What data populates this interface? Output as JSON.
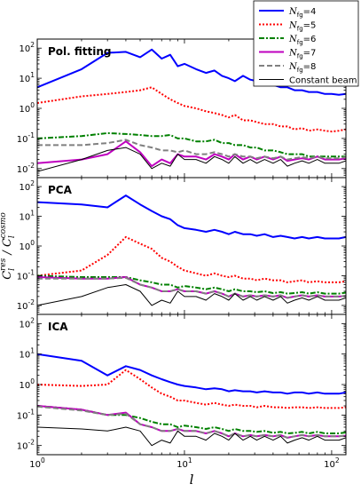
{
  "chart_data": {
    "type": "line",
    "xlabel": "l",
    "ylabel": "C_l^res / C_l^cosmo",
    "x_scale": "log",
    "y_scale": "log",
    "xlim": [
      1,
      125
    ],
    "ylim": [
      0.005,
      200
    ],
    "x_ticks": [
      "10^0",
      "10^1",
      "10^2"
    ],
    "y_ticks": [
      "10^-2",
      "10^-1",
      "10^0",
      "10^1",
      "10^2"
    ],
    "x": [
      1,
      2,
      3,
      4,
      5,
      6,
      7,
      8,
      9,
      10,
      12,
      14,
      16,
      18,
      20,
      22,
      25,
      28,
      31,
      35,
      40,
      45,
      50,
      56,
      63,
      70,
      80,
      90,
      100,
      112,
      125
    ],
    "legend": {
      "position": "top-right",
      "entries": [
        {
          "label": "N_fg=4",
          "base": "N",
          "sub": "fg",
          "suffix": "=4",
          "color": "#0000ff",
          "dash": "solid",
          "width": 2
        },
        {
          "label": "N_fg=5",
          "base": "N",
          "sub": "fg",
          "suffix": "=5",
          "color": "#ff0000",
          "dash": "dotted",
          "width": 2
        },
        {
          "label": "N_fg=6",
          "base": "N",
          "sub": "fg",
          "suffix": "=6",
          "color": "#008000",
          "dash": "dashdot",
          "width": 2
        },
        {
          "label": "N_fg=7",
          "base": "N",
          "sub": "fg",
          "suffix": "=7",
          "color": "#bf00bf",
          "dash": "solid",
          "width": 2
        },
        {
          "label": "N_fg=8",
          "base": "N",
          "sub": "fg",
          "suffix": "=8",
          "color": "#808080",
          "dash": "dashed",
          "width": 2
        },
        {
          "label": "Constant beam",
          "base": "Constant beam",
          "sub": "",
          "suffix": "",
          "color": "#000000",
          "dash": "solid",
          "width": 1
        }
      ]
    },
    "panels": [
      {
        "label": "Pol. fitting",
        "series": [
          {
            "name": "N_fg=4",
            "values": [
              5,
              20,
              70,
              75,
              50,
              90,
              45,
              60,
              25,
              30,
              20,
              15,
              18,
              12,
              10,
              8,
              12,
              9,
              8,
              7,
              6,
              5,
              5,
              4,
              4,
              3.5,
              3.5,
              3,
              3,
              2.8,
              3
            ]
          },
          {
            "name": "N_fg=5",
            "values": [
              1.5,
              2.5,
              3,
              3.5,
              4,
              5,
              3,
              2,
              1.5,
              1.2,
              1,
              0.8,
              0.7,
              0.6,
              0.5,
              0.6,
              0.4,
              0.4,
              0.35,
              0.3,
              0.3,
              0.25,
              0.25,
              0.2,
              0.22,
              0.18,
              0.2,
              0.18,
              0.17,
              0.18,
              0.2
            ]
          },
          {
            "name": "N_fg=6",
            "values": [
              0.1,
              0.12,
              0.15,
              0.14,
              0.13,
              0.12,
              0.12,
              0.13,
              0.1,
              0.1,
              0.08,
              0.08,
              0.09,
              0.07,
              0.07,
              0.06,
              0.06,
              0.05,
              0.05,
              0.04,
              0.04,
              0.035,
              0.03,
              0.03,
              0.03,
              0.025,
              0.025,
              0.025,
              0.025,
              0.025,
              0.025
            ]
          },
          {
            "name": "N_fg=7",
            "values": [
              0.015,
              0.02,
              0.03,
              0.08,
              0.035,
              0.012,
              0.02,
              0.015,
              0.03,
              0.025,
              0.025,
              0.02,
              0.03,
              0.025,
              0.02,
              0.03,
              0.02,
              0.025,
              0.02,
              0.025,
              0.02,
              0.025,
              0.018,
              0.02,
              0.022,
              0.02,
              0.025,
              0.02,
              0.02,
              0.02,
              0.022
            ]
          },
          {
            "name": "N_fg=8",
            "values": [
              0.06,
              0.06,
              0.07,
              0.09,
              0.06,
              0.05,
              0.04,
              0.04,
              0.035,
              0.04,
              0.03,
              0.03,
              0.035,
              0.03,
              0.025,
              0.03,
              0.025,
              0.025,
              0.022,
              0.025,
              0.022,
              0.025,
              0.02,
              0.022,
              0.024,
              0.022,
              0.025,
              0.022,
              0.022,
              0.022,
              0.024
            ]
          },
          {
            "name": "Constant beam",
            "values": [
              0.008,
              0.02,
              0.04,
              0.05,
              0.03,
              0.01,
              0.015,
              0.012,
              0.03,
              0.02,
              0.02,
              0.015,
              0.025,
              0.02,
              0.015,
              0.025,
              0.015,
              0.02,
              0.015,
              0.02,
              0.015,
              0.02,
              0.012,
              0.015,
              0.018,
              0.015,
              0.02,
              0.015,
              0.015,
              0.015,
              0.018
            ]
          }
        ]
      },
      {
        "label": "PCA",
        "series": [
          {
            "name": "N_fg=4",
            "values": [
              30,
              25,
              20,
              50,
              25,
              15,
              10,
              8,
              5,
              4,
              3.5,
              3,
              3.5,
              3,
              2.5,
              3,
              2.5,
              2.5,
              2.2,
              2.5,
              2,
              2.2,
              2,
              1.8,
              2,
              1.8,
              2,
              1.8,
              1.8,
              1.8,
              2
            ]
          },
          {
            "name": "N_fg=5",
            "values": [
              0.1,
              0.15,
              0.5,
              2,
              1.2,
              0.8,
              0.4,
              0.3,
              0.2,
              0.15,
              0.12,
              0.1,
              0.12,
              0.1,
              0.09,
              0.1,
              0.08,
              0.08,
              0.07,
              0.08,
              0.07,
              0.07,
              0.06,
              0.065,
              0.07,
              0.06,
              0.065,
              0.06,
              0.06,
              0.06,
              0.065
            ]
          },
          {
            "name": "N_fg=6",
            "values": [
              0.1,
              0.09,
              0.09,
              0.09,
              0.07,
              0.06,
              0.05,
              0.05,
              0.04,
              0.045,
              0.04,
              0.035,
              0.04,
              0.035,
              0.03,
              0.035,
              0.03,
              0.03,
              0.028,
              0.03,
              0.026,
              0.028,
              0.025,
              0.026,
              0.028,
              0.025,
              0.028,
              0.025,
              0.025,
              0.025,
              0.027
            ]
          },
          {
            "name": "N_fg=7",
            "values": [
              0.09,
              0.08,
              0.08,
              0.09,
              0.05,
              0.04,
              0.03,
              0.03,
              0.035,
              0.03,
              0.03,
              0.025,
              0.03,
              0.025,
              0.02,
              0.025,
              0.02,
              0.022,
              0.02,
              0.022,
              0.02,
              0.022,
              0.018,
              0.02,
              0.022,
              0.02,
              0.022,
              0.02,
              0.02,
              0.02,
              0.021
            ]
          },
          {
            "name": "N_fg=8",
            "values": [
              0.08,
              0.08,
              0.08,
              0.085,
              0.05,
              0.04,
              0.03,
              0.03,
              0.035,
              0.03,
              0.03,
              0.025,
              0.03,
              0.025,
              0.02,
              0.025,
              0.02,
              0.022,
              0.02,
              0.022,
              0.02,
              0.022,
              0.018,
              0.02,
              0.022,
              0.02,
              0.022,
              0.02,
              0.02,
              0.02,
              0.021
            ]
          },
          {
            "name": "Constant beam",
            "values": [
              0.01,
              0.02,
              0.04,
              0.05,
              0.03,
              0.01,
              0.015,
              0.012,
              0.03,
              0.02,
              0.02,
              0.015,
              0.025,
              0.02,
              0.015,
              0.025,
              0.015,
              0.02,
              0.015,
              0.02,
              0.015,
              0.02,
              0.012,
              0.015,
              0.018,
              0.015,
              0.02,
              0.015,
              0.015,
              0.015,
              0.018
            ]
          }
        ]
      },
      {
        "label": "ICA",
        "series": [
          {
            "name": "N_fg=4",
            "values": [
              10,
              6,
              2,
              4,
              3,
              2,
              1.5,
              1.2,
              1,
              0.9,
              0.8,
              0.7,
              0.75,
              0.7,
              0.6,
              0.65,
              0.6,
              0.6,
              0.55,
              0.6,
              0.55,
              0.55,
              0.5,
              0.55,
              0.55,
              0.5,
              0.55,
              0.5,
              0.5,
              0.5,
              0.55
            ]
          },
          {
            "name": "N_fg=5",
            "values": [
              1,
              0.9,
              1,
              3,
              1.5,
              0.8,
              0.5,
              0.4,
              0.3,
              0.3,
              0.25,
              0.22,
              0.25,
              0.22,
              0.2,
              0.22,
              0.2,
              0.2,
              0.18,
              0.2,
              0.18,
              0.18,
              0.17,
              0.18,
              0.18,
              0.17,
              0.18,
              0.17,
              0.17,
              0.17,
              0.18
            ]
          },
          {
            "name": "N_fg=6",
            "values": [
              0.2,
              0.15,
              0.1,
              0.1,
              0.08,
              0.06,
              0.05,
              0.05,
              0.04,
              0.045,
              0.04,
              0.035,
              0.04,
              0.035,
              0.03,
              0.035,
              0.03,
              0.03,
              0.028,
              0.03,
              0.026,
              0.028,
              0.025,
              0.026,
              0.028,
              0.025,
              0.028,
              0.025,
              0.025,
              0.025,
              0.027
            ]
          },
          {
            "name": "N_fg=7",
            "values": [
              0.2,
              0.15,
              0.1,
              0.12,
              0.05,
              0.04,
              0.03,
              0.03,
              0.035,
              0.03,
              0.03,
              0.025,
              0.03,
              0.025,
              0.02,
              0.025,
              0.02,
              0.022,
              0.02,
              0.022,
              0.02,
              0.022,
              0.018,
              0.02,
              0.022,
              0.02,
              0.022,
              0.02,
              0.02,
              0.02,
              0.021
            ]
          },
          {
            "name": "N_fg=8",
            "values": [
              0.19,
              0.14,
              0.1,
              0.11,
              0.05,
              0.04,
              0.03,
              0.03,
              0.035,
              0.03,
              0.03,
              0.025,
              0.03,
              0.025,
              0.02,
              0.025,
              0.02,
              0.022,
              0.02,
              0.022,
              0.02,
              0.022,
              0.018,
              0.02,
              0.022,
              0.02,
              0.022,
              0.02,
              0.02,
              0.02,
              0.021
            ]
          },
          {
            "name": "Constant beam",
            "values": [
              0.04,
              0.035,
              0.03,
              0.04,
              0.03,
              0.01,
              0.015,
              0.012,
              0.03,
              0.02,
              0.02,
              0.015,
              0.025,
              0.02,
              0.015,
              0.025,
              0.015,
              0.02,
              0.015,
              0.02,
              0.015,
              0.02,
              0.012,
              0.015,
              0.018,
              0.015,
              0.02,
              0.015,
              0.015,
              0.015,
              0.018
            ]
          }
        ]
      }
    ]
  }
}
